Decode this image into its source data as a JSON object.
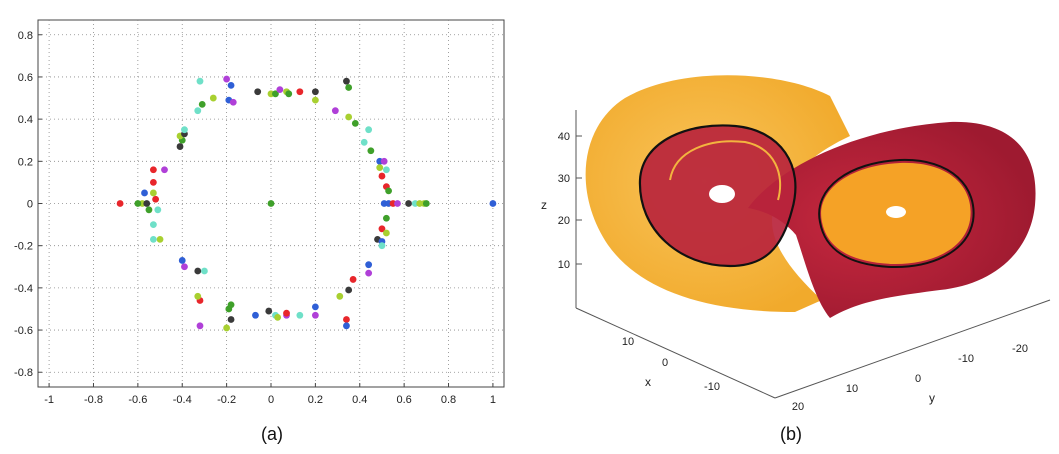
{
  "chart_data": [
    {
      "type": "scatter",
      "caption": "(a)",
      "xlim": [
        -1.05,
        1.05
      ],
      "ylim": [
        -0.87,
        0.87
      ],
      "xticks": [
        "-1",
        "-0.8",
        "-0.6",
        "-0.4",
        "-0.2",
        "0",
        "0.2",
        "0.4",
        "0.6",
        "0.8",
        "1"
      ],
      "xtick_values": [
        -1,
        -0.8,
        -0.6,
        -0.4,
        -0.2,
        0,
        0.2,
        0.4,
        0.6,
        0.8,
        1
      ],
      "yticks": [
        "0.8",
        "0.6",
        "0.4",
        "0.2",
        "0",
        "-0.2",
        "-0.4",
        "-0.6",
        "-0.8"
      ],
      "ytick_values": [
        0.8,
        0.6,
        0.4,
        0.2,
        0,
        -0.2,
        -0.4,
        -0.6,
        -0.8
      ],
      "grid": true,
      "colors": [
        "#e8262b",
        "#2f5fd6",
        "#b040d8",
        "#3fa02a",
        "#3a3a3a",
        "#6fe0c8",
        "#a8d030"
      ],
      "points": [
        {
          "x": -0.32,
          "y": 0.58,
          "c": 5
        },
        {
          "x": -0.2,
          "y": 0.59,
          "c": 2
        },
        {
          "x": -0.18,
          "y": 0.56,
          "c": 1
        },
        {
          "x": -0.26,
          "y": 0.5,
          "c": 6
        },
        {
          "x": -0.31,
          "y": 0.47,
          "c": 3
        },
        {
          "x": -0.33,
          "y": 0.44,
          "c": 5
        },
        {
          "x": -0.19,
          "y": 0.49,
          "c": 1
        },
        {
          "x": -0.17,
          "y": 0.48,
          "c": 2
        },
        {
          "x": -0.06,
          "y": 0.53,
          "c": 4
        },
        {
          "x": 0.0,
          "y": 0.52,
          "c": 6
        },
        {
          "x": 0.02,
          "y": 0.52,
          "c": 3
        },
        {
          "x": 0.04,
          "y": 0.54,
          "c": 2
        },
        {
          "x": 0.07,
          "y": 0.53,
          "c": 6
        },
        {
          "x": 0.08,
          "y": 0.52,
          "c": 3
        },
        {
          "x": 0.13,
          "y": 0.53,
          "c": 0
        },
        {
          "x": 0.2,
          "y": 0.53,
          "c": 4
        },
        {
          "x": 0.2,
          "y": 0.49,
          "c": 6
        },
        {
          "x": 0.34,
          "y": 0.58,
          "c": 4
        },
        {
          "x": 0.35,
          "y": 0.55,
          "c": 3
        },
        {
          "x": 0.29,
          "y": 0.44,
          "c": 2
        },
        {
          "x": 0.35,
          "y": 0.41,
          "c": 6
        },
        {
          "x": 0.38,
          "y": 0.38,
          "c": 3
        },
        {
          "x": 0.44,
          "y": 0.35,
          "c": 5
        },
        {
          "x": 0.42,
          "y": 0.29,
          "c": 5
        },
        {
          "x": 0.45,
          "y": 0.25,
          "c": 3
        },
        {
          "x": 0.49,
          "y": 0.2,
          "c": 1
        },
        {
          "x": 0.51,
          "y": 0.2,
          "c": 2
        },
        {
          "x": 0.49,
          "y": 0.17,
          "c": 6
        },
        {
          "x": 0.52,
          "y": 0.16,
          "c": 5
        },
        {
          "x": 0.5,
          "y": 0.13,
          "c": 0
        },
        {
          "x": 0.52,
          "y": 0.08,
          "c": 0
        },
        {
          "x": 0.53,
          "y": 0.06,
          "c": 3
        },
        {
          "x": 0.51,
          "y": 0.0,
          "c": 1
        },
        {
          "x": 0.53,
          "y": 0.0,
          "c": 1
        },
        {
          "x": 0.55,
          "y": 0.0,
          "c": 0
        },
        {
          "x": 0.57,
          "y": 0.0,
          "c": 2
        },
        {
          "x": 0.62,
          "y": 0.0,
          "c": 4
        },
        {
          "x": 0.65,
          "y": 0.0,
          "c": 5
        },
        {
          "x": 0.67,
          "y": 0.0,
          "c": 6
        },
        {
          "x": 0.69,
          "y": 0.0,
          "c": 6
        },
        {
          "x": 0.7,
          "y": 0.0,
          "c": 3
        },
        {
          "x": 1.0,
          "y": 0.0,
          "c": 1
        },
        {
          "x": 0.0,
          "y": 0.0,
          "c": 3
        },
        {
          "x": 0.52,
          "y": -0.07,
          "c": 3
        },
        {
          "x": 0.5,
          "y": -0.12,
          "c": 0
        },
        {
          "x": 0.52,
          "y": -0.14,
          "c": 6
        },
        {
          "x": 0.48,
          "y": -0.17,
          "c": 4
        },
        {
          "x": 0.5,
          "y": -0.18,
          "c": 1
        },
        {
          "x": 0.5,
          "y": -0.2,
          "c": 5
        },
        {
          "x": 0.44,
          "y": -0.29,
          "c": 1
        },
        {
          "x": 0.44,
          "y": -0.33,
          "c": 2
        },
        {
          "x": 0.37,
          "y": -0.36,
          "c": 0
        },
        {
          "x": 0.35,
          "y": -0.41,
          "c": 4
        },
        {
          "x": 0.31,
          "y": -0.44,
          "c": 6
        },
        {
          "x": 0.34,
          "y": -0.55,
          "c": 0
        },
        {
          "x": 0.34,
          "y": -0.58,
          "c": 1
        },
        {
          "x": 0.2,
          "y": -0.49,
          "c": 1
        },
        {
          "x": 0.2,
          "y": -0.53,
          "c": 2
        },
        {
          "x": 0.13,
          "y": -0.53,
          "c": 5
        },
        {
          "x": 0.07,
          "y": -0.53,
          "c": 2
        },
        {
          "x": 0.07,
          "y": -0.52,
          "c": 0
        },
        {
          "x": 0.02,
          "y": -0.53,
          "c": 5
        },
        {
          "x": 0.03,
          "y": -0.54,
          "c": 6
        },
        {
          "x": -0.01,
          "y": -0.51,
          "c": 4
        },
        {
          "x": -0.07,
          "y": -0.53,
          "c": 1
        },
        {
          "x": -0.18,
          "y": -0.48,
          "c": 3
        },
        {
          "x": -0.19,
          "y": -0.5,
          "c": 3
        },
        {
          "x": -0.18,
          "y": -0.55,
          "c": 4
        },
        {
          "x": -0.2,
          "y": -0.59,
          "c": 6
        },
        {
          "x": -0.32,
          "y": -0.58,
          "c": 2
        },
        {
          "x": -0.32,
          "y": -0.46,
          "c": 0
        },
        {
          "x": -0.33,
          "y": -0.44,
          "c": 6
        },
        {
          "x": -0.3,
          "y": -0.32,
          "c": 5
        },
        {
          "x": -0.33,
          "y": -0.32,
          "c": 4
        },
        {
          "x": -0.39,
          "y": -0.3,
          "c": 2
        },
        {
          "x": -0.4,
          "y": -0.27,
          "c": 1
        },
        {
          "x": -0.5,
          "y": -0.17,
          "c": 6
        },
        {
          "x": -0.53,
          "y": -0.17,
          "c": 5
        },
        {
          "x": -0.53,
          "y": -0.1,
          "c": 5
        },
        {
          "x": -0.51,
          "y": -0.03,
          "c": 5
        },
        {
          "x": -0.58,
          "y": 0.0,
          "c": 6
        },
        {
          "x": -0.56,
          "y": 0.0,
          "c": 4
        },
        {
          "x": -0.55,
          "y": -0.03,
          "c": 3
        },
        {
          "x": -0.6,
          "y": 0.0,
          "c": 3
        },
        {
          "x": -0.68,
          "y": 0.0,
          "c": 0
        },
        {
          "x": -0.52,
          "y": 0.02,
          "c": 0
        },
        {
          "x": -0.53,
          "y": 0.05,
          "c": 6
        },
        {
          "x": -0.57,
          "y": 0.05,
          "c": 1
        },
        {
          "x": -0.53,
          "y": 0.1,
          "c": 0
        },
        {
          "x": -0.53,
          "y": 0.16,
          "c": 0
        },
        {
          "x": -0.48,
          "y": 0.16,
          "c": 2
        },
        {
          "x": -0.41,
          "y": 0.27,
          "c": 4
        },
        {
          "x": -0.4,
          "y": 0.3,
          "c": 3
        },
        {
          "x": -0.41,
          "y": 0.32,
          "c": 6
        },
        {
          "x": -0.39,
          "y": 0.33,
          "c": 4
        },
        {
          "x": -0.39,
          "y": 0.35,
          "c": 5
        }
      ]
    },
    {
      "type": "surface-3d",
      "caption": "(b)",
      "zlabel": "z",
      "xlabel": "x",
      "ylabel": "y",
      "zticks": [
        "40",
        "30",
        "20",
        "10"
      ],
      "xticks": [
        "10",
        "0",
        "-10"
      ],
      "yticks": [
        "20",
        "10",
        "0",
        "-10",
        "-20"
      ],
      "colors": {
        "outer_wing": "#f3b43f",
        "inner_wing": "#b5213a",
        "core": "#f7a020",
        "orbit": "#111111"
      }
    }
  ]
}
